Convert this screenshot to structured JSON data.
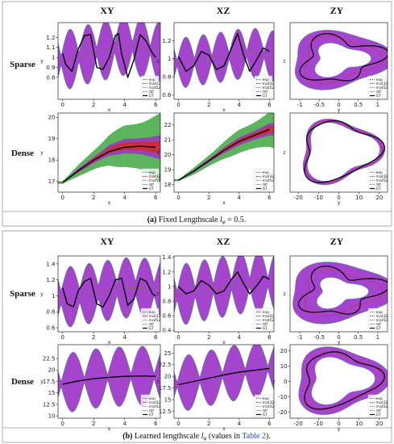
{
  "figure": {
    "column_titles": [
      "XY",
      "XZ",
      "ZY"
    ],
    "row_labels": [
      "Sparse",
      "Dense",
      "Sparse",
      "Dense"
    ],
    "captions": [
      {
        "label": "(a)",
        "text": " Fixed Lengthscale ",
        "sym": "l",
        "sub": "φ",
        "tail": " = 0.5."
      },
      {
        "label": "(b)",
        "text": " Learned lengthscale ",
        "sym": "l",
        "sub": "φ",
        "tail": " (values in ",
        "link": "Table 2",
        "end": ")."
      }
    ],
    "legend": [
      "exp",
      "mat32",
      "mat52",
      "rbf",
      "GT"
    ]
  },
  "colors": {
    "exp": "#2ca02c",
    "mat32": "#d62728",
    "mat52": "#17becf",
    "rbf": "#9467bd",
    "gt": "#000000",
    "fill_purple": "#9b30c8",
    "fill_green": "#3fa83f",
    "link": "#1f4fd1"
  },
  "chart_data": [
    {
      "id": "a1",
      "type": "line",
      "panel": "(a) Sparse XY",
      "xlabel": "x",
      "ylabel": "y",
      "xlim": [
        -0.3,
        6.3
      ],
      "ylim": [
        0.58,
        1.35
      ],
      "xticks": [
        0,
        2,
        4,
        6
      ],
      "yticks": [
        0.8,
        0.9,
        1.0,
        1.1,
        1.2
      ],
      "mean": {
        "x": [
          0,
          1,
          2,
          3,
          4,
          5,
          6
        ],
        "y": [
          0.97,
          1.0,
          1.05,
          1.08,
          1.12,
          1.1,
          1.06
        ]
      },
      "band_half_width": {
        "min": 0.04,
        "max": 0.3,
        "period": 1.15
      },
      "gt": {
        "x": [
          0,
          0.2,
          0.6,
          1.0,
          1.4,
          1.8,
          2.2,
          2.6,
          3.0,
          3.4,
          3.6,
          3.8,
          4.2,
          4.6,
          5.0,
          5.4,
          5.8,
          6.0
        ],
        "y": [
          1.04,
          0.93,
          0.86,
          1.08,
          1.22,
          1.23,
          0.9,
          0.88,
          1.0,
          1.22,
          1.24,
          1.04,
          0.8,
          0.98,
          1.23,
          1.16,
          1.04,
          1.0
        ]
      }
    },
    {
      "id": "a2",
      "type": "line",
      "panel": "(a) Sparse XZ",
      "xlabel": "x",
      "ylabel": "z",
      "xlim": [
        -0.3,
        6.3
      ],
      "ylim": [
        0.55,
        1.4
      ],
      "xticks": [
        0,
        2,
        4,
        6
      ],
      "yticks": [
        0.6,
        0.8,
        1.0,
        1.2
      ],
      "mean": {
        "x": [
          0,
          1,
          2,
          3,
          4,
          5,
          6
        ],
        "y": [
          0.95,
          0.97,
          1.0,
          1.02,
          1.05,
          1.06,
          1.03
        ]
      },
      "band_half_width": {
        "min": 0.03,
        "max": 0.28,
        "period": 1.15
      },
      "gt": {
        "x": [
          0,
          0.5,
          1.0,
          1.5,
          2.0,
          2.5,
          3.0,
          3.5,
          3.9,
          4.3,
          4.7,
          5.2,
          5.6,
          6.0
        ],
        "y": [
          1.02,
          0.86,
          0.92,
          1.08,
          1.04,
          0.88,
          0.92,
          1.12,
          1.28,
          1.04,
          0.86,
          1.0,
          1.12,
          1.08
        ]
      }
    },
    {
      "id": "a3",
      "type": "line",
      "panel": "(a) Sparse ZY",
      "xlabel": "y",
      "ylabel": "z",
      "xlim": [
        -1.25,
        1.25
      ],
      "ylim": [
        -1.25,
        1.25
      ],
      "xticks": [
        -1.0,
        -0.5,
        0.0,
        0.5,
        1.0
      ],
      "yticks": [],
      "band_thickness": 0.28
    },
    {
      "id": "a4",
      "type": "line",
      "panel": "(a) Dense XY",
      "xlabel": "x",
      "ylabel": "y",
      "xlim": [
        -0.3,
        6.3
      ],
      "ylim": [
        16.5,
        20.2
      ],
      "xticks": [
        0,
        2,
        4,
        6
      ],
      "yticks": [
        17,
        18,
        19,
        20
      ],
      "mean": {
        "x": [
          0,
          1,
          2,
          3,
          4,
          5,
          6
        ],
        "y": [
          16.95,
          17.5,
          18.0,
          18.45,
          18.65,
          18.65,
          18.6
        ]
      },
      "band_half_width": {
        "min": 0.05,
        "max": 1.4,
        "period": null
      },
      "gt": {
        "x": [
          0,
          1,
          2,
          3,
          4,
          5,
          6
        ],
        "y": [
          16.95,
          17.5,
          18.0,
          18.4,
          18.6,
          18.65,
          18.6
        ]
      }
    },
    {
      "id": "a5",
      "type": "line",
      "panel": "(a) Dense XZ",
      "xlabel": "x",
      "ylabel": "z",
      "xlim": [
        -0.3,
        6.3
      ],
      "ylim": [
        17.5,
        22.8
      ],
      "xticks": [
        0,
        2,
        4,
        6
      ],
      "yticks": [
        18,
        19,
        20,
        21,
        22
      ],
      "mean": {
        "x": [
          0,
          1,
          2,
          3,
          4,
          5,
          6
        ],
        "y": [
          18.3,
          18.9,
          19.6,
          20.3,
          20.9,
          21.3,
          21.7
        ]
      },
      "band_half_width": {
        "min": 0.05,
        "max": 1.1,
        "period": null
      },
      "gt": {
        "x": [
          0,
          1,
          2,
          3,
          4,
          5,
          6
        ],
        "y": [
          18.3,
          18.9,
          19.6,
          20.3,
          20.9,
          21.3,
          21.7
        ]
      }
    },
    {
      "id": "a6",
      "type": "line",
      "panel": "(a) Dense ZY",
      "xlabel": "y",
      "ylabel": "z",
      "xlim": [
        -24,
        24
      ],
      "ylim": [
        -24,
        24
      ],
      "xticks": [
        -20,
        -10,
        0,
        10,
        20
      ],
      "yticks": [],
      "band_thickness": 1.2
    },
    {
      "id": "b1",
      "type": "line",
      "panel": "(b) Sparse XY",
      "xlabel": "x",
      "ylabel": "y",
      "xlim": [
        -0.3,
        6.3
      ],
      "ylim": [
        0.55,
        1.5
      ],
      "xticks": [
        0,
        2,
        4,
        6
      ],
      "yticks": [
        0.6,
        0.8,
        1.0,
        1.2,
        1.4
      ],
      "mean": {
        "x": [
          0,
          1,
          2,
          3,
          4,
          5,
          6
        ],
        "y": [
          0.98,
          1.0,
          1.04,
          1.07,
          1.1,
          1.1,
          1.08
        ]
      },
      "band_half_width": {
        "min": 0.08,
        "max": 0.38,
        "period": 1.2
      },
      "gt": {
        "x": [
          0,
          0.3,
          0.7,
          1.0,
          1.4,
          1.8,
          2.2,
          2.6,
          3.0,
          3.4,
          3.8,
          4.2,
          4.6,
          5.0,
          5.4,
          5.8,
          6.0
        ],
        "y": [
          1.1,
          0.9,
          0.86,
          1.06,
          1.18,
          1.22,
          0.9,
          0.86,
          1.0,
          1.2,
          1.22,
          0.88,
          0.96,
          1.22,
          1.18,
          1.02,
          1.0
        ]
      }
    },
    {
      "id": "b2",
      "type": "line",
      "panel": "(b) Sparse XZ",
      "xlabel": "x",
      "ylabel": "z",
      "xlim": [
        -0.3,
        6.3
      ],
      "ylim": [
        0.38,
        1.42
      ],
      "xticks": [
        0,
        2,
        4,
        6
      ],
      "yticks": [
        0.4,
        0.6,
        0.8,
        1.0,
        1.2,
        1.4
      ],
      "mean": {
        "x": [
          0,
          1,
          2,
          3,
          4,
          5,
          6
        ],
        "y": [
          0.88,
          0.92,
          0.96,
          1.0,
          1.04,
          1.06,
          1.06
        ]
      },
      "band_half_width": {
        "min": 0.06,
        "max": 0.42,
        "period": 1.2
      },
      "gt": {
        "x": [
          0,
          0.5,
          1.0,
          1.5,
          2.0,
          2.5,
          3.0,
          3.5,
          3.9,
          4.3,
          4.7,
          5.2,
          5.6,
          6.0
        ],
        "y": [
          1.0,
          0.9,
          0.94,
          1.08,
          1.02,
          0.9,
          0.94,
          1.1,
          1.2,
          1.04,
          0.9,
          1.02,
          1.14,
          1.1
        ]
      }
    },
    {
      "id": "b3",
      "type": "line",
      "panel": "(b) Sparse ZY",
      "xlabel": "y",
      "ylabel": "z",
      "xlim": [
        -1.25,
        1.25
      ],
      "ylim": [
        -1.25,
        1.25
      ],
      "xticks": [
        -1.0,
        -0.5,
        0.0,
        0.5,
        1.0
      ],
      "yticks": [],
      "band_thickness": 0.34
    },
    {
      "id": "b4",
      "type": "line",
      "panel": "(b) Dense XY",
      "xlabel": "x",
      "ylabel": "y",
      "xlim": [
        -0.3,
        6.3
      ],
      "ylim": [
        9.5,
        25.5
      ],
      "xticks": [
        0,
        2,
        4,
        6
      ],
      "yticks": [
        10.0,
        12.5,
        15.0,
        17.5,
        20.0,
        22.5
      ],
      "mean": {
        "x": [
          0,
          1,
          2,
          3,
          4,
          5,
          6
        ],
        "y": [
          16.9,
          17.6,
          18.1,
          18.4,
          18.6,
          18.7,
          18.6
        ]
      },
      "band_half_width": {
        "min": 0.5,
        "max": 6.5,
        "period": 1.5
      },
      "gt": {
        "x": [
          0,
          1,
          2,
          3,
          4,
          5,
          6
        ],
        "y": [
          16.9,
          17.6,
          18.1,
          18.4,
          18.6,
          18.7,
          18.6
        ]
      }
    },
    {
      "id": "b5",
      "type": "line",
      "panel": "(b) Dense XZ",
      "xlabel": "x",
      "ylabel": "z",
      "xlim": [
        -0.3,
        6.3
      ],
      "ylim": [
        11.0,
        26.8
      ],
      "xticks": [
        0,
        2,
        4,
        6
      ],
      "yticks": [
        12.5,
        15.0,
        17.5,
        20.0,
        22.5,
        25.0
      ],
      "mean": {
        "x": [
          0,
          1,
          2,
          3,
          4,
          5,
          6
        ],
        "y": [
          18.2,
          18.9,
          19.6,
          20.3,
          20.9,
          21.3,
          21.7
        ]
      },
      "band_half_width": {
        "min": 0.5,
        "max": 6.0,
        "period": 1.5
      },
      "gt": {
        "x": [
          0,
          1,
          2,
          3,
          4,
          5,
          6
        ],
        "y": [
          18.2,
          18.9,
          19.6,
          20.3,
          20.9,
          21.3,
          21.7
        ]
      }
    },
    {
      "id": "b6",
      "type": "line",
      "panel": "(b) Dense ZY",
      "xlabel": "y",
      "ylabel": "z",
      "xlim": [
        -24,
        24
      ],
      "ylim": [
        -24,
        24
      ],
      "xticks": [
        -20,
        -10,
        0,
        10,
        20
      ],
      "yticks": [
        -20,
        -10,
        0,
        10,
        20
      ],
      "band_thickness": 3.5
    }
  ]
}
